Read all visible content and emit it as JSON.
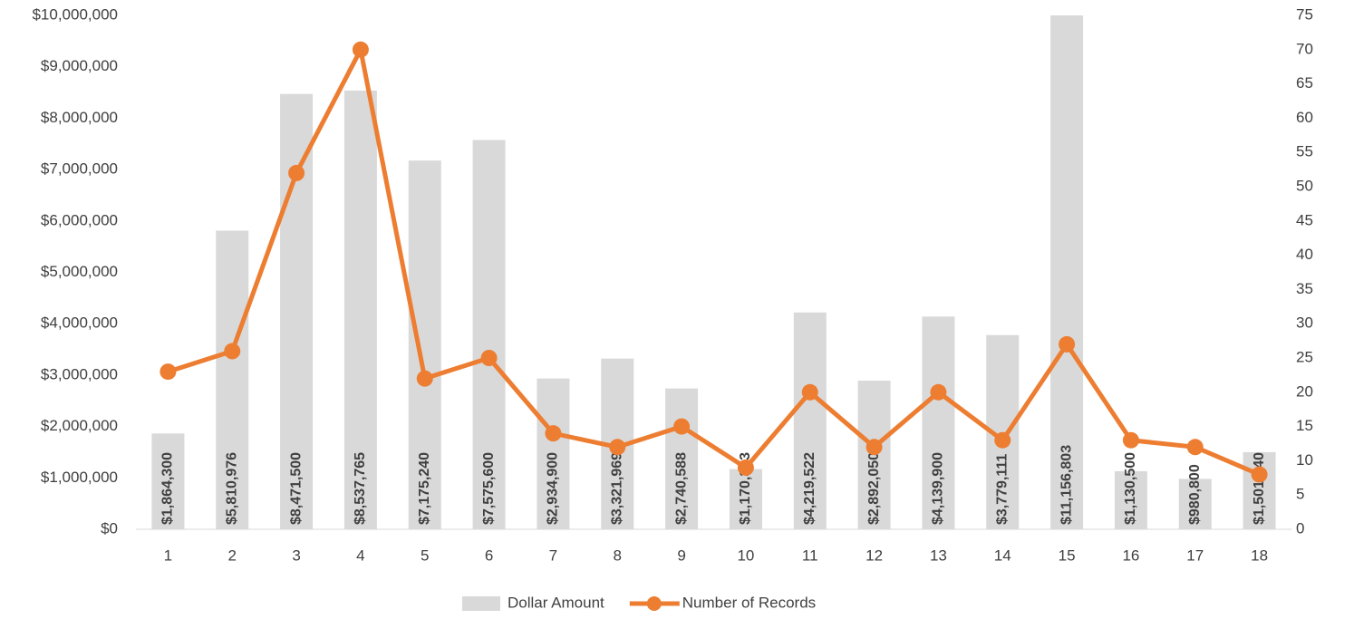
{
  "chart_data": {
    "type": "combo",
    "categories": [
      "1",
      "2",
      "3",
      "4",
      "5",
      "6",
      "7",
      "8",
      "9",
      "10",
      "11",
      "12",
      "13",
      "14",
      "15",
      "16",
      "17",
      "18"
    ],
    "series": [
      {
        "name": "Dollar Amount",
        "type": "bar",
        "color": "#d9d9d9",
        "values": [
          1864300,
          5810976,
          8471500,
          8537765,
          7175240,
          7575600,
          2934900,
          3321969,
          2740588,
          1170313,
          4219522,
          2892050,
          4139900,
          3779111,
          11156803,
          1130500,
          980800,
          1501740
        ],
        "value_labels": [
          "$1,864,300",
          "$5,810,976",
          "$8,471,500",
          "$8,537,765",
          "$7,175,240",
          "$7,575,600",
          "$2,934,900",
          "$3,321,969",
          "$2,740,588",
          "$1,170,313",
          "$4,219,522",
          "$2,892,050",
          "$4,139,900",
          "$3,779,111",
          "$11,156,803",
          "$1,130,500",
          "$980,800",
          "$1,501,740"
        ]
      },
      {
        "name": "Number of Records",
        "type": "line",
        "axis": "y2",
        "color": "#ed7d31",
        "values": [
          23,
          26,
          52,
          70,
          22,
          25,
          14,
          12,
          15,
          9,
          20,
          12,
          20,
          13,
          27,
          13,
          12,
          8
        ]
      }
    ],
    "ylim": [
      0,
      10000000
    ],
    "yticks": [
      {
        "value": 0,
        "label": "$0"
      },
      {
        "value": 1000000,
        "label": "$1,000,000"
      },
      {
        "value": 2000000,
        "label": "$2,000,000"
      },
      {
        "value": 3000000,
        "label": "$3,000,000"
      },
      {
        "value": 4000000,
        "label": "$4,000,000"
      },
      {
        "value": 5000000,
        "label": "$5,000,000"
      },
      {
        "value": 6000000,
        "label": "$6,000,000"
      },
      {
        "value": 7000000,
        "label": "$7,000,000"
      },
      {
        "value": 8000000,
        "label": "$8,000,000"
      },
      {
        "value": 9000000,
        "label": "$9,000,000"
      },
      {
        "value": 10000000,
        "label": "$10,000,000"
      }
    ],
    "y2lim": [
      0,
      75
    ],
    "y2ticks": [
      0,
      5,
      10,
      15,
      20,
      25,
      30,
      35,
      40,
      45,
      50,
      55,
      60,
      65,
      70,
      75
    ],
    "legend": "bottom"
  }
}
